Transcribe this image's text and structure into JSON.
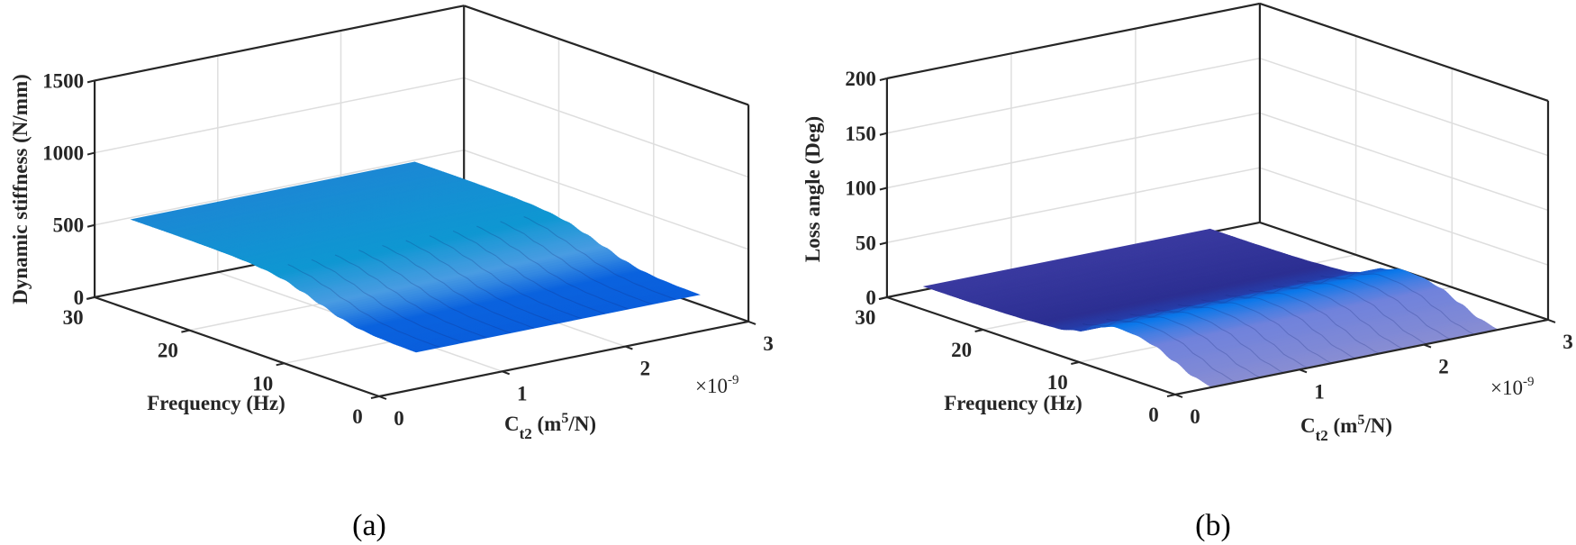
{
  "chart_data": [
    {
      "type": "surface",
      "panel_label": "(a)",
      "zlabel": "Dynamic stiffness (N/mm)",
      "ylabel": "Frequency (Hz)",
      "xlabel": {
        "main": "C",
        "sub": "t2",
        "unit_pre": " (m",
        "sup": "5",
        "unit_post": "/N)"
      },
      "x_exponent": {
        "base": "×10",
        "power": "-9"
      },
      "xlim": [
        0,
        3
      ],
      "ylim": [
        0,
        30
      ],
      "zlim": [
        0,
        1500
      ],
      "xticks": [
        "0",
        "1",
        "2",
        "3"
      ],
      "yticks": [
        "0",
        "10",
        "20",
        "30"
      ],
      "zticks": [
        "0",
        "500",
        "1000",
        "1500"
      ],
      "grid": true,
      "surface_x_range": [
        0.3,
        2.6
      ],
      "frequency": [
        0,
        2,
        4,
        6,
        8,
        10,
        12,
        14,
        16,
        18,
        20,
        22,
        24,
        26,
        28,
        30
      ],
      "z_values": [
        255,
        258,
        265,
        280,
        310,
        355,
        400,
        440,
        462,
        474,
        480,
        483,
        485,
        486,
        486,
        486
      ],
      "color_stops": [
        {
          "frequency": 0,
          "color": "#0a5edc"
        },
        {
          "frequency": 6,
          "color": "#0b63de"
        },
        {
          "frequency": 10,
          "color": "#4a9ce2"
        },
        {
          "frequency": 15,
          "color": "#0f97d2"
        },
        {
          "frequency": 30,
          "color": "#1c88d4"
        }
      ]
    },
    {
      "type": "surface",
      "panel_label": "(b)",
      "zlabel": "Loss angle (Deg)",
      "ylabel": "Frequency (Hz)",
      "xlabel": {
        "main": "C",
        "sub": "t2",
        "unit_pre": " (m",
        "sup": "5",
        "unit_post": "/N)"
      },
      "x_exponent": {
        "base": "×10",
        "power": "-9"
      },
      "xlim": [
        0,
        3
      ],
      "ylim": [
        0,
        30
      ],
      "zlim": [
        0,
        200
      ],
      "xticks": [
        "0",
        "1",
        "2",
        "3"
      ],
      "yticks": [
        "0",
        "10",
        "20",
        "30"
      ],
      "zticks": [
        "0",
        "50",
        "100",
        "150",
        "200"
      ],
      "grid": true,
      "surface_x_range": [
        0.3,
        2.6
      ],
      "frequency": [
        0,
        2,
        4,
        6,
        8,
        10,
        12,
        14,
        16,
        18,
        20,
        22,
        24,
        26,
        28,
        30
      ],
      "z_values": [
        0,
        4,
        12,
        20,
        24,
        25,
        20,
        10,
        6,
        5,
        4,
        3.5,
        3.2,
        3,
        3,
        3
      ],
      "color_stops": [
        {
          "frequency": 0,
          "color": "#8a8ed2"
        },
        {
          "frequency": 6,
          "color": "#6f82dc"
        },
        {
          "frequency": 10,
          "color": "#0a78ea"
        },
        {
          "frequency": 14,
          "color": "#2344b4"
        },
        {
          "frequency": 18,
          "color": "#2c2f92"
        },
        {
          "frequency": 30,
          "color": "#3a3aa0"
        }
      ]
    }
  ]
}
